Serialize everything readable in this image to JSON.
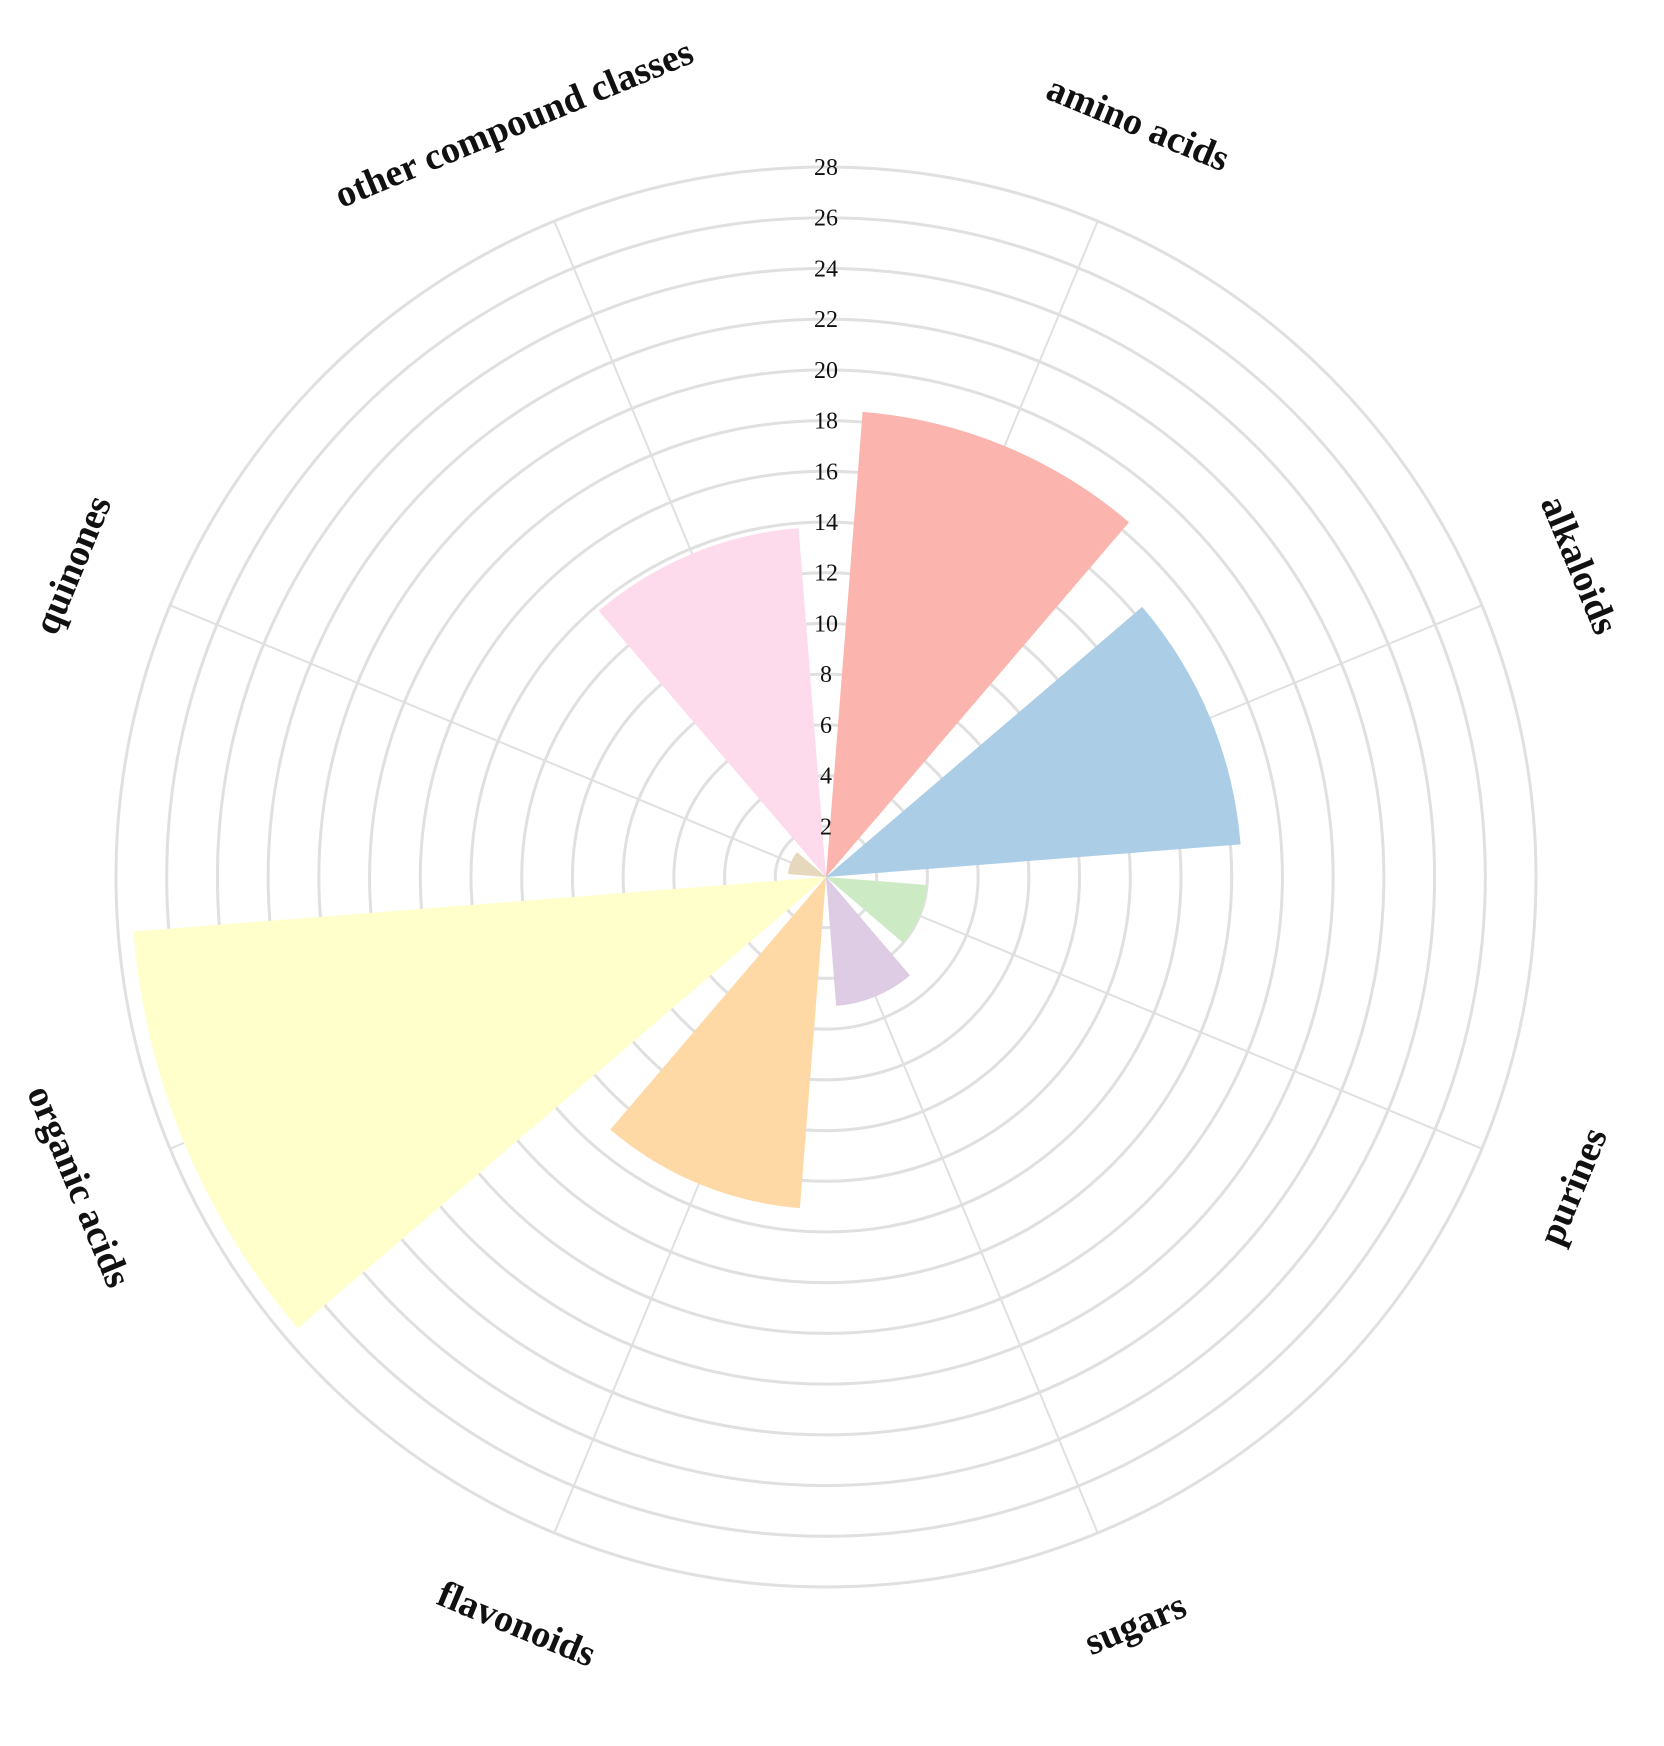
{
  "chart_data": {
    "type": "polar_bar",
    "title": "",
    "categories": [
      "amino acids",
      "alkaloids",
      "purines",
      "sugars",
      "flavonoids",
      "organic acids",
      "quinones",
      "other compound classes"
    ],
    "values": [
      18.4,
      16.4,
      4.0,
      5.1,
      13.1,
      27.4,
      1.5,
      13.8
    ],
    "colors": [
      "#fbb4ae",
      "#abcde6",
      "#ccebc5",
      "#decbe4",
      "#fed9a6",
      "#ffffcc",
      "#e5d8bd",
      "#fddaec"
    ],
    "rlim": [
      0,
      28
    ],
    "r_ticks": [
      2,
      4,
      6,
      8,
      10,
      12,
      14,
      16,
      18,
      20,
      22,
      24,
      26,
      28
    ],
    "grid": true
  }
}
